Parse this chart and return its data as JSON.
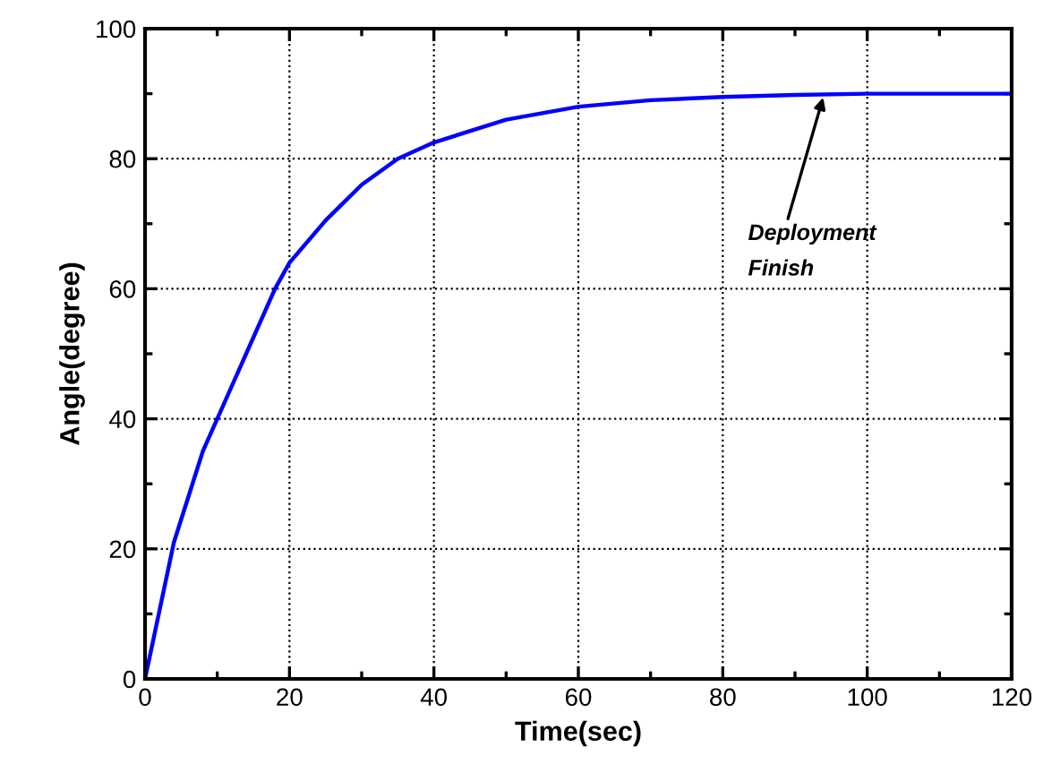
{
  "chart_data": {
    "type": "line",
    "xlabel": "Time(sec)",
    "ylabel": "Angle(degree)",
    "x": [
      0,
      2,
      4,
      6,
      8,
      10,
      14,
      18,
      20,
      25,
      30,
      35,
      40,
      50,
      60,
      70,
      80,
      90,
      100,
      120
    ],
    "series": [
      {
        "color": "#0000ff",
        "values": [
          0,
          10.5,
          21,
          28,
          35,
          40,
          50,
          60,
          64,
          70.5,
          76,
          80,
          82.5,
          86,
          88,
          89,
          89.5,
          89.8,
          90,
          90
        ]
      }
    ],
    "xlim": [
      0,
      120
    ],
    "ylim": [
      0,
      100
    ],
    "xticks": [
      0,
      20,
      40,
      60,
      80,
      100,
      120
    ],
    "yticks": [
      0,
      20,
      40,
      60,
      80,
      100
    ],
    "grid": true,
    "marker": "none",
    "line_style": "solid",
    "annotations": [
      {
        "text": "Deployment\nFinish",
        "x": 94,
        "y": 89.8
      }
    ]
  }
}
